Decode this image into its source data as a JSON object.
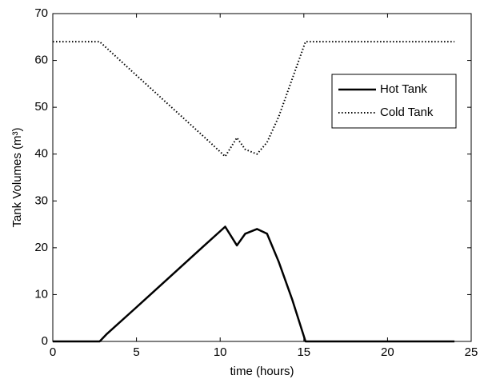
{
  "chart_data": {
    "type": "line",
    "xlabel": "time (hours)",
    "ylabel": "Tank Volumes (m³)",
    "x": [
      0,
      2.8,
      3.2,
      5,
      7,
      9,
      10.3,
      11,
      11.5,
      12.2,
      12.8,
      13.5,
      14.3,
      15.1,
      24
    ],
    "series": [
      {
        "name": "Hot Tank",
        "color": "#000000",
        "linestyle": "solid",
        "values": [
          0,
          0,
          1.5,
          7.3,
          13.8,
          20.3,
          24.5,
          20.5,
          23,
          24,
          23,
          17,
          9,
          0,
          0
        ]
      },
      {
        "name": "Cold Tank",
        "color": "#000000",
        "linestyle": "dotted",
        "values": [
          64,
          64,
          62.7,
          56.8,
          50.3,
          43.8,
          39.5,
          43.5,
          41,
          40,
          42.5,
          48,
          56,
          64,
          64
        ]
      }
    ],
    "xlim": [
      0,
      25
    ],
    "xticks": [
      0,
      5,
      10,
      15,
      20,
      25
    ],
    "ylim": [
      0,
      70
    ],
    "yticks": [
      0,
      10,
      20,
      30,
      40,
      50,
      60,
      70
    ],
    "grid": false,
    "legend": "upper right"
  }
}
